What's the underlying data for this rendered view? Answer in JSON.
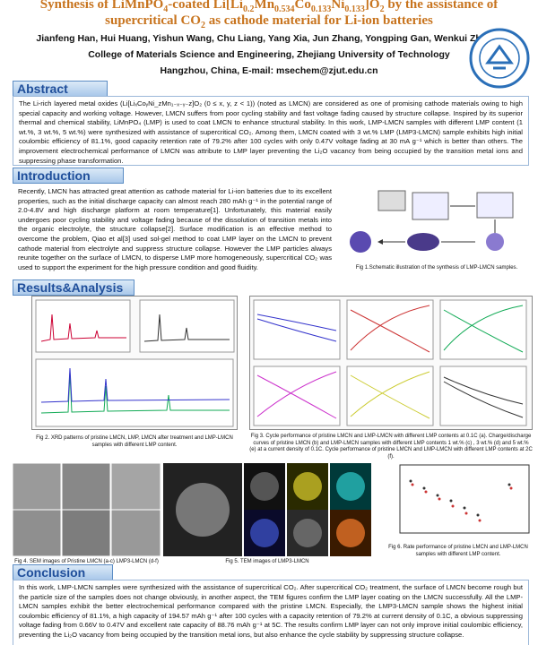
{
  "header": {
    "title": [
      [
        {
          "t": "Synthesis of LiMnPO"
        },
        {
          "t": "4",
          "sub": true
        },
        {
          "t": "-coated Li[Li"
        },
        {
          "t": "0.2",
          "sub": true
        },
        {
          "t": "Mn"
        },
        {
          "t": "0.534",
          "sub": true
        },
        {
          "t": "Co"
        },
        {
          "t": "0.133",
          "sub": true
        },
        {
          "t": "Ni"
        },
        {
          "t": "0.133",
          "sub": true
        },
        {
          "t": "]O"
        },
        {
          "t": "2",
          "sub": true
        },
        {
          "t": " by the assistance of"
        }
      ],
      [
        {
          "t": "supercritical CO"
        },
        {
          "t": "2",
          "sub": true
        },
        {
          "t": " as cathode material for Li-ion batteries"
        }
      ]
    ],
    "authors": "Jianfeng Han, Hui Huang, Yishun Wang, Chu Liang, Yang Xia, Jun Zhang, Yongping Gan, Wenkui Zhang*",
    "affiliation": "College of Materials Science and Engineering, Zhejiang University of Technology",
    "address": "Hangzhou, China, E-mail: msechem@zjut.edu.cn"
  },
  "abstract": {
    "heading": "Abstract",
    "text": "The Li-rich layered metal oxides (Li[LiₓCoᵧNi_zMn₁₋ₓ₋ᵧ₋z]O₂ (0 ≤ x, y, z < 1)) (noted as LMCN) are considered as one of promising cathode materials owing to high special capacity and working voltage. However, LMCN suffers from poor cycling stability and fast voltage fading caused by structure collapse. Inspired by its superior thermal and chemical stability, LiMnPO₄ (LMP) is used to coat LMCN to enhance structural stability. In this work, LMP-LMCN samples with different LMP content (1 wt.%, 3 wt.%, 5 wt.%) were synthesized with assistance of supercritical CO₂. Among them, LMCN coated with 3 wt.% LMP (LMP3-LMCN) sample exhibits high initial coulombic efficiency of 81.1%,  good capacity retention rate of 79.2% after 100 cycles with only 0.47V voltage fading at 30 mA g⁻¹ which is better than others. The improvement electrochemical performance of LMCN was attribute to LMP layer preventing the Li₂O vacancy from being occupied by the transition metal ions and suppressing phase transformation."
  },
  "introduction": {
    "heading": "Introduction",
    "text": "Recently, LMCN has attracted great attention as cathode material for Li-ion batteries due to its excellent properties, such as the initial discharge capacity can almost reach 280 mAh g⁻¹ in the potential range of 2.0-4.8V and high discharge platform at room temperature[1]. Unfortunately, this material easily undergoes poor cycling stability and voltage fading because of the dissolution of transition metals into the organic electrolyte, the structure collapse[2]. Surface modification is an effective method to overcome the problem, Qiao et al[3] used sol-gel method to coat LMP layer on the  LMCN to prevent cathode material from electrolyte and suppress structure collapse. However the LMP particles always reunite together on the surface of LMCN, to disperse LMP more homogeneously, supercritical CO₂ was used to support the experiment for the high pressure condition and good fluidity.",
    "fig1_caption": "Fig 1.Schematic illustration of the synthesis of LMP-LMCN samples."
  },
  "results": {
    "heading": "Results&Analysis",
    "fig2_caption": "Fig 2. XRD patterns of pristine LMCN, LMP, LMCN after treatment and LMP-LMCN samples with different LMP content.",
    "fig3_caption": "Fig 3. Cycle performance of pristine LMCN and LMP-LMCN with different LMP contents at 0.1C (a).  Charge/discharge curves of pristine LMCN (b) and LMP-LMCN samples with different LMP contents 1 wt.% (c) , 3 wt.% (d) and 5 wt.% (e) at a current density of 0.1C. Cycle performance of pristine LMCN and LMP-LMCN with different LMP contents at 2C (f).",
    "fig4_caption": "Fig 4. SEM images of Pristine LMCN (a-c) LMP3-LMCN (d-f)",
    "fig5_caption": "Fig 5. TEM images of LMP3-LMCN",
    "fig6_caption": "Fig 6. Rate performance of pristine LMCN and LMP-LMCN samples with different LMP content."
  },
  "conclusion": {
    "heading": "Conclusion",
    "text": "In this work, LMP-LMCN samples were synthesized with the assistance of supercritical CO₂. After supercritical CO₂ treatment, the surface of LMCN become rough but the particle size of the samples does not change obviously, in another aspect, the TEM figures confirm the LMP layer coating on the LMCN successfully. All the LMP-LMCN samples exhibit the better electrochemical performance compared with the pristine LMCN. Especially, the LMP3-LMCN sample shows the highest initial coulombic efficiency of 81.1%, a high capacity of 194.57 mAh g⁻¹ after 100 cycles with a capacity retention of 79.2% at current density of 0.1C, a obvious suppressing voltage fading from 0.66V to 0.47V and excellent rate capacity of 88.76 mAh g⁻¹ at 5C. The results confirm LMP layer can not only improve initial coulombic efficiency, preventing the Li₂O vacancy from being occupied by the transition metal ions, but also enhance the cycle stability by suppressing structure collapse."
  }
}
